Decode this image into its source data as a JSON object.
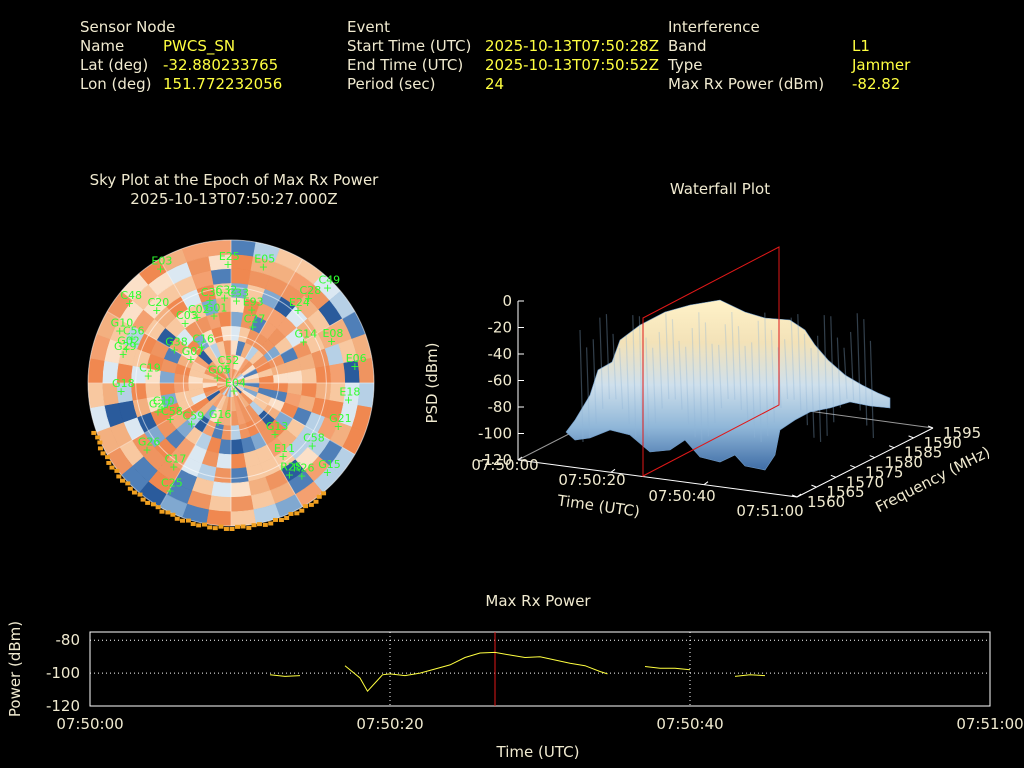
{
  "header": {
    "sensor": {
      "title": "Sensor Node",
      "fields": [
        {
          "label": "Name",
          "value": "PWCS_SN"
        },
        {
          "label": "Lat (deg)",
          "value": "-32.880233765"
        },
        {
          "label": "Lon (deg)",
          "value": "151.772232056"
        }
      ]
    },
    "event": {
      "title": "Event",
      "fields": [
        {
          "label": "Start Time (UTC)",
          "value": "2025-10-13T07:50:28Z"
        },
        {
          "label": "End Time (UTC)",
          "value": "2025-10-13T07:50:52Z"
        },
        {
          "label": "Period (sec)",
          "value": "24"
        }
      ]
    },
    "interference": {
      "title": "Interference",
      "fields": [
        {
          "label": "Band",
          "value": "L1"
        },
        {
          "label": "Type",
          "value": "Jammer"
        },
        {
          "label": "Max Rx Power (dBm)",
          "value": "-82.82"
        }
      ]
    }
  },
  "skyplot": {
    "title_line1": "Sky Plot at the Epoch of Max Rx Power",
    "title_line2": "2025-10-13T07:50:27.000Z",
    "satellites": [
      {
        "id": "E03",
        "az": -32,
        "el": 5
      },
      {
        "id": "E25",
        "az": -2,
        "el": 15
      },
      {
        "id": "E05",
        "az": 15,
        "el": 14
      },
      {
        "id": "C49",
        "az": 45,
        "el": 5
      },
      {
        "id": "C48",
        "az": -52,
        "el": 8
      },
      {
        "id": "C28",
        "az": 42,
        "el": 18
      },
      {
        "id": "C20",
        "az": -46,
        "el": 24
      },
      {
        "id": "C30",
        "az": -15,
        "el": 36
      },
      {
        "id": "C32",
        "az": -5,
        "el": 36
      },
      {
        "id": "C33",
        "az": 3,
        "el": 38
      },
      {
        "id": "E24",
        "az": 42,
        "el": 28
      },
      {
        "id": "E93",
        "az": 15,
        "el": 42
      },
      {
        "id": "G10",
        "az": -65,
        "el": 12
      },
      {
        "id": "C03",
        "az": -38,
        "el": 42
      },
      {
        "id": "C02",
        "az": -28,
        "el": 43
      },
      {
        "id": "G01",
        "az": -15,
        "el": 46
      },
      {
        "id": "C56",
        "az": -66,
        "el": 21
      },
      {
        "id": "E08",
        "az": 67,
        "el": 22
      },
      {
        "id": "C27",
        "az": 20,
        "el": 52
      },
      {
        "id": "G02",
        "az": -72,
        "el": 20
      },
      {
        "id": "G29",
        "az": -75,
        "el": 19
      },
      {
        "id": "G14",
        "az": 60,
        "el": 38
      },
      {
        "id": "C16",
        "az": -40,
        "el": 60
      },
      {
        "id": "G38",
        "az": -60,
        "el": 48
      },
      {
        "id": "G07",
        "az": -60,
        "el": 60
      },
      {
        "id": "E06",
        "az": 82,
        "el": 12
      },
      {
        "id": "C19",
        "az": -85,
        "el": 37
      },
      {
        "id": "C52",
        "az": -20,
        "el": 80
      },
      {
        "id": "G18",
        "az": -94,
        "el": 20
      },
      {
        "id": "G05",
        "az": -70,
        "el": 80
      },
      {
        "id": "E18",
        "az": 98,
        "el": 16
      },
      {
        "id": "C10",
        "az": -110,
        "el": 43
      },
      {
        "id": "G27",
        "az": -111,
        "el": 40
      },
      {
        "id": "C58",
        "az": -120,
        "el": 45
      },
      {
        "id": "E04",
        "az": 165,
        "el": 85
      },
      {
        "id": "G21",
        "az": 112,
        "el": 18
      },
      {
        "id": "C59",
        "az": -135,
        "el": 54
      },
      {
        "id": "G16",
        "az": -160,
        "el": 64
      },
      {
        "id": "C58b",
        "az": 128,
        "el": 26
      },
      {
        "id": "G13",
        "az": 140,
        "el": 48
      },
      {
        "id": "G26",
        "az": -128,
        "el": 22
      },
      {
        "id": "C17",
        "az": -145,
        "el": 26
      },
      {
        "id": "E11",
        "az": 145,
        "el": 34
      },
      {
        "id": "C25",
        "az": -150,
        "el": 12
      },
      {
        "id": "R25",
        "az": 148,
        "el": 22
      },
      {
        "id": "R26",
        "az": 143,
        "el": 17
      },
      {
        "id": "G15",
        "az": 133,
        "el": 8
      }
    ]
  },
  "waterfall": {
    "title": "Waterfall Plot",
    "zlabel": "PSD (dBm)",
    "xlabel": "Time (UTC)",
    "ylabel": "Frequency (MHz)",
    "z_ticks": [
      "0",
      "-20",
      "-40",
      "-60",
      "-80",
      "-100",
      "-120"
    ],
    "time_ticks": [
      "07:50:00",
      "07:50:20",
      "07:50:40",
      "07:51:00"
    ],
    "freq_ticks": [
      "1560",
      "1565",
      "1570",
      "1575",
      "1580",
      "1585",
      "1590",
      "1595"
    ]
  },
  "chart_data": {
    "type": "line",
    "title": "Max Rx Power",
    "xlabel": "Time (UTC)",
    "ylabel": "Power (dBm)",
    "ylim": [
      -120,
      -75
    ],
    "xlim_sec": [
      0,
      60
    ],
    "x_tick_labels": [
      "07:50:00",
      "07:50:20",
      "07:50:40",
      "07:51:00"
    ],
    "y_tick_labels": [
      "-80",
      "-100",
      "-120"
    ],
    "marker_time_sec": 27,
    "segments": [
      [
        [
          12,
          -101
        ],
        [
          13,
          -102
        ],
        [
          14,
          -101.5
        ]
      ],
      [
        [
          17,
          -95.5
        ],
        [
          18,
          -103
        ],
        [
          18.5,
          -111
        ],
        [
          19,
          -106
        ],
        [
          19.5,
          -101
        ],
        [
          20,
          -100.5
        ],
        [
          20.5,
          -101
        ],
        [
          21,
          -101.5
        ],
        [
          22,
          -100
        ],
        [
          23,
          -97.5
        ],
        [
          24,
          -95
        ],
        [
          25,
          -90.5
        ],
        [
          26,
          -87.8
        ],
        [
          27,
          -87.4
        ],
        [
          28,
          -89
        ],
        [
          29,
          -90.5
        ],
        [
          30,
          -90
        ],
        [
          31,
          -92
        ],
        [
          32,
          -94
        ],
        [
          33,
          -95.5
        ],
        [
          34,
          -99
        ],
        [
          34.5,
          -100.5
        ]
      ],
      [
        [
          37,
          -96
        ],
        [
          38,
          -97
        ],
        [
          39,
          -97
        ],
        [
          40,
          -98
        ]
      ],
      [
        [
          43,
          -102
        ],
        [
          44,
          -101
        ],
        [
          45,
          -101.5
        ]
      ]
    ],
    "grid": true
  }
}
